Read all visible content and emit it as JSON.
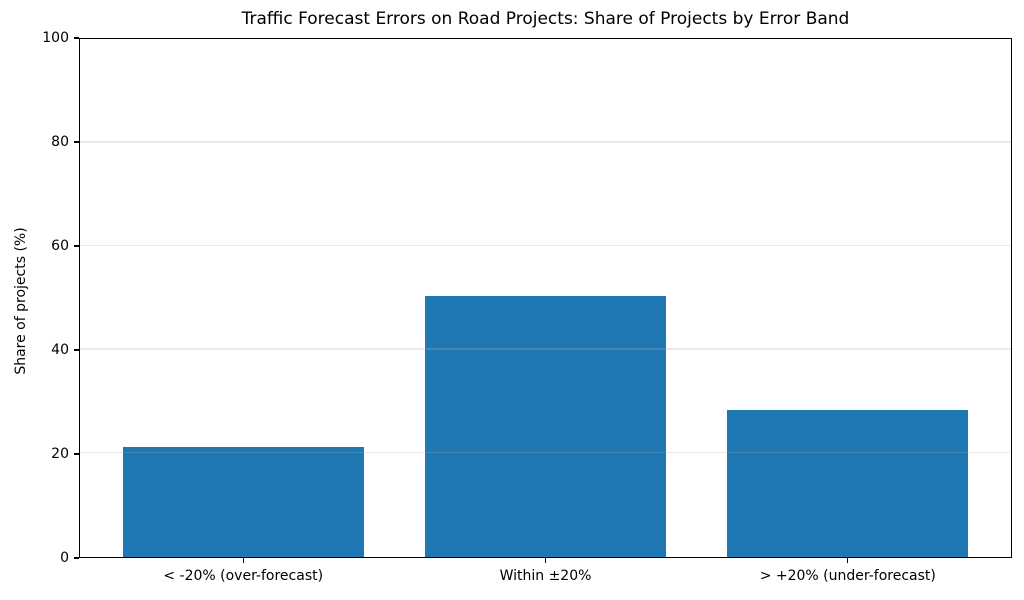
{
  "chart_data": {
    "type": "bar",
    "title": "Traffic Forecast Errors on Road Projects: Share of Projects by Error Band",
    "categories": [
      "< -20% (over-forecast)",
      "Within ±20%",
      "> +20% (under-forecast)"
    ],
    "values": [
      21.2,
      50.4,
      28.4
    ],
    "xlabel": "",
    "ylabel": "Share of projects (%)",
    "ylim": [
      0,
      100
    ],
    "yticks": [
      0,
      20,
      40,
      60,
      80,
      100
    ],
    "grid": "horizontal",
    "legend_position": "none",
    "bar_color": "#1f77b4",
    "grid_color": "rgba(176,176,176,0.28)",
    "spine_color": "#000000"
  }
}
